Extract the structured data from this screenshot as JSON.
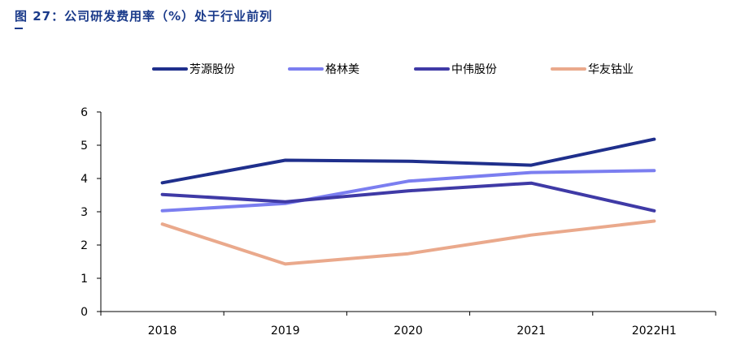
{
  "figure": {
    "title": "图 27：公司研发费用率（%）处于行业前列"
  },
  "chart_data": {
    "type": "line",
    "categories": [
      "2018",
      "2019",
      "2020",
      "2021",
      "2022H1"
    ],
    "ylim": [
      0,
      6
    ],
    "yticks": [
      "0",
      "1",
      "2",
      "3",
      "4",
      "5",
      "6"
    ],
    "grid": false,
    "legend_position": "top",
    "series": [
      {
        "name": "芳源股份",
        "color": "#1f2f8c",
        "values": [
          3.87,
          4.55,
          4.52,
          4.4,
          5.18
        ]
      },
      {
        "name": "格林美",
        "color": "#7b7ef0",
        "values": [
          3.03,
          3.25,
          3.92,
          4.18,
          4.24
        ]
      },
      {
        "name": "中伟股份",
        "color": "#3f3aa6",
        "values": [
          3.52,
          3.3,
          3.63,
          3.86,
          3.03
        ]
      },
      {
        "name": "华友钴业",
        "color": "#eaa98c",
        "values": [
          2.63,
          1.43,
          1.74,
          2.3,
          2.72
        ]
      }
    ]
  }
}
